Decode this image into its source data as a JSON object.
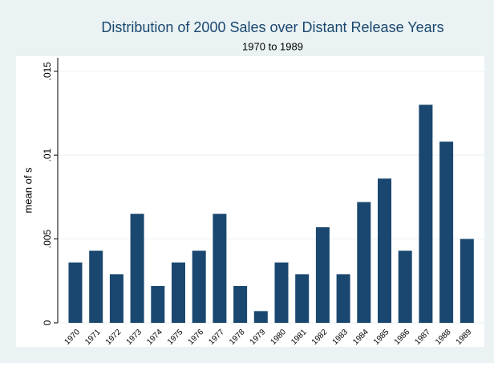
{
  "chart_data": {
    "type": "bar",
    "title": "Distribution of 2000 Sales over Distant Release Years",
    "subtitle": "1970 to 1989",
    "y_label": "mean of s",
    "categories": [
      "1970",
      "1971",
      "1972",
      "1973",
      "1974",
      "1975",
      "1976",
      "1977",
      "1978",
      "1979",
      "1980",
      "1981",
      "1982",
      "1983",
      "1984",
      "1985",
      "1986",
      "1987",
      "1988",
      "1989"
    ],
    "values": [
      0.0036,
      0.0043,
      0.0029,
      0.0065,
      0.0022,
      0.0036,
      0.0043,
      0.0065,
      0.0022,
      0.0007,
      0.0036,
      0.0029,
      0.0057,
      0.0029,
      0.0072,
      0.0086,
      0.0043,
      0.013,
      0.0108,
      0.005
    ],
    "color": "#1a476f",
    "ylim": [
      0,
      0.0158
    ],
    "yticks": [
      0,
      {
        "value": 0.005,
        "label": ".005"
      },
      {
        "value": 0.01,
        "label": ".01"
      },
      {
        "value": 0.015,
        "label": ".015"
      }
    ],
    "grid": true
  }
}
